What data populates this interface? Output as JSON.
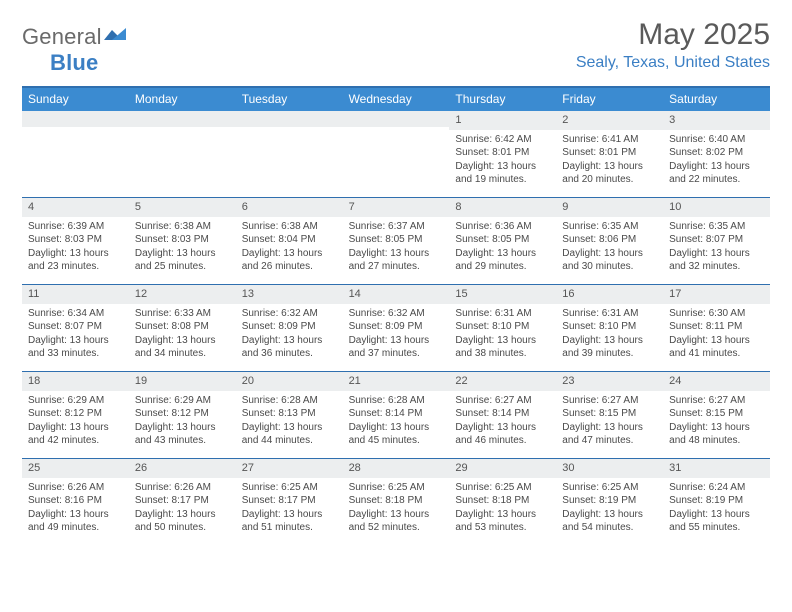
{
  "brand": {
    "part1": "General",
    "part2": "Blue"
  },
  "colors": {
    "accent": "#3b8bd1",
    "accent_dark": "#2f6faf",
    "logo_blue": "#3b7fc4",
    "grey_text": "#5a5a5a",
    "band_bg": "#eceeef"
  },
  "title": "May 2025",
  "location": "Sealy, Texas, United States",
  "weekdays": [
    "Sunday",
    "Monday",
    "Tuesday",
    "Wednesday",
    "Thursday",
    "Friday",
    "Saturday"
  ],
  "weeks": [
    [
      null,
      null,
      null,
      null,
      {
        "n": "1",
        "sr": "Sunrise: 6:42 AM",
        "ss": "Sunset: 8:01 PM",
        "d1": "Daylight: 13 hours",
        "d2": "and 19 minutes."
      },
      {
        "n": "2",
        "sr": "Sunrise: 6:41 AM",
        "ss": "Sunset: 8:01 PM",
        "d1": "Daylight: 13 hours",
        "d2": "and 20 minutes."
      },
      {
        "n": "3",
        "sr": "Sunrise: 6:40 AM",
        "ss": "Sunset: 8:02 PM",
        "d1": "Daylight: 13 hours",
        "d2": "and 22 minutes."
      }
    ],
    [
      {
        "n": "4",
        "sr": "Sunrise: 6:39 AM",
        "ss": "Sunset: 8:03 PM",
        "d1": "Daylight: 13 hours",
        "d2": "and 23 minutes."
      },
      {
        "n": "5",
        "sr": "Sunrise: 6:38 AM",
        "ss": "Sunset: 8:03 PM",
        "d1": "Daylight: 13 hours",
        "d2": "and 25 minutes."
      },
      {
        "n": "6",
        "sr": "Sunrise: 6:38 AM",
        "ss": "Sunset: 8:04 PM",
        "d1": "Daylight: 13 hours",
        "d2": "and 26 minutes."
      },
      {
        "n": "7",
        "sr": "Sunrise: 6:37 AM",
        "ss": "Sunset: 8:05 PM",
        "d1": "Daylight: 13 hours",
        "d2": "and 27 minutes."
      },
      {
        "n": "8",
        "sr": "Sunrise: 6:36 AM",
        "ss": "Sunset: 8:05 PM",
        "d1": "Daylight: 13 hours",
        "d2": "and 29 minutes."
      },
      {
        "n": "9",
        "sr": "Sunrise: 6:35 AM",
        "ss": "Sunset: 8:06 PM",
        "d1": "Daylight: 13 hours",
        "d2": "and 30 minutes."
      },
      {
        "n": "10",
        "sr": "Sunrise: 6:35 AM",
        "ss": "Sunset: 8:07 PM",
        "d1": "Daylight: 13 hours",
        "d2": "and 32 minutes."
      }
    ],
    [
      {
        "n": "11",
        "sr": "Sunrise: 6:34 AM",
        "ss": "Sunset: 8:07 PM",
        "d1": "Daylight: 13 hours",
        "d2": "and 33 minutes."
      },
      {
        "n": "12",
        "sr": "Sunrise: 6:33 AM",
        "ss": "Sunset: 8:08 PM",
        "d1": "Daylight: 13 hours",
        "d2": "and 34 minutes."
      },
      {
        "n": "13",
        "sr": "Sunrise: 6:32 AM",
        "ss": "Sunset: 8:09 PM",
        "d1": "Daylight: 13 hours",
        "d2": "and 36 minutes."
      },
      {
        "n": "14",
        "sr": "Sunrise: 6:32 AM",
        "ss": "Sunset: 8:09 PM",
        "d1": "Daylight: 13 hours",
        "d2": "and 37 minutes."
      },
      {
        "n": "15",
        "sr": "Sunrise: 6:31 AM",
        "ss": "Sunset: 8:10 PM",
        "d1": "Daylight: 13 hours",
        "d2": "and 38 minutes."
      },
      {
        "n": "16",
        "sr": "Sunrise: 6:31 AM",
        "ss": "Sunset: 8:10 PM",
        "d1": "Daylight: 13 hours",
        "d2": "and 39 minutes."
      },
      {
        "n": "17",
        "sr": "Sunrise: 6:30 AM",
        "ss": "Sunset: 8:11 PM",
        "d1": "Daylight: 13 hours",
        "d2": "and 41 minutes."
      }
    ],
    [
      {
        "n": "18",
        "sr": "Sunrise: 6:29 AM",
        "ss": "Sunset: 8:12 PM",
        "d1": "Daylight: 13 hours",
        "d2": "and 42 minutes."
      },
      {
        "n": "19",
        "sr": "Sunrise: 6:29 AM",
        "ss": "Sunset: 8:12 PM",
        "d1": "Daylight: 13 hours",
        "d2": "and 43 minutes."
      },
      {
        "n": "20",
        "sr": "Sunrise: 6:28 AM",
        "ss": "Sunset: 8:13 PM",
        "d1": "Daylight: 13 hours",
        "d2": "and 44 minutes."
      },
      {
        "n": "21",
        "sr": "Sunrise: 6:28 AM",
        "ss": "Sunset: 8:14 PM",
        "d1": "Daylight: 13 hours",
        "d2": "and 45 minutes."
      },
      {
        "n": "22",
        "sr": "Sunrise: 6:27 AM",
        "ss": "Sunset: 8:14 PM",
        "d1": "Daylight: 13 hours",
        "d2": "and 46 minutes."
      },
      {
        "n": "23",
        "sr": "Sunrise: 6:27 AM",
        "ss": "Sunset: 8:15 PM",
        "d1": "Daylight: 13 hours",
        "d2": "and 47 minutes."
      },
      {
        "n": "24",
        "sr": "Sunrise: 6:27 AM",
        "ss": "Sunset: 8:15 PM",
        "d1": "Daylight: 13 hours",
        "d2": "and 48 minutes."
      }
    ],
    [
      {
        "n": "25",
        "sr": "Sunrise: 6:26 AM",
        "ss": "Sunset: 8:16 PM",
        "d1": "Daylight: 13 hours",
        "d2": "and 49 minutes."
      },
      {
        "n": "26",
        "sr": "Sunrise: 6:26 AM",
        "ss": "Sunset: 8:17 PM",
        "d1": "Daylight: 13 hours",
        "d2": "and 50 minutes."
      },
      {
        "n": "27",
        "sr": "Sunrise: 6:25 AM",
        "ss": "Sunset: 8:17 PM",
        "d1": "Daylight: 13 hours",
        "d2": "and 51 minutes."
      },
      {
        "n": "28",
        "sr": "Sunrise: 6:25 AM",
        "ss": "Sunset: 8:18 PM",
        "d1": "Daylight: 13 hours",
        "d2": "and 52 minutes."
      },
      {
        "n": "29",
        "sr": "Sunrise: 6:25 AM",
        "ss": "Sunset: 8:18 PM",
        "d1": "Daylight: 13 hours",
        "d2": "and 53 minutes."
      },
      {
        "n": "30",
        "sr": "Sunrise: 6:25 AM",
        "ss": "Sunset: 8:19 PM",
        "d1": "Daylight: 13 hours",
        "d2": "and 54 minutes."
      },
      {
        "n": "31",
        "sr": "Sunrise: 6:24 AM",
        "ss": "Sunset: 8:19 PM",
        "d1": "Daylight: 13 hours",
        "d2": "and 55 minutes."
      }
    ]
  ]
}
